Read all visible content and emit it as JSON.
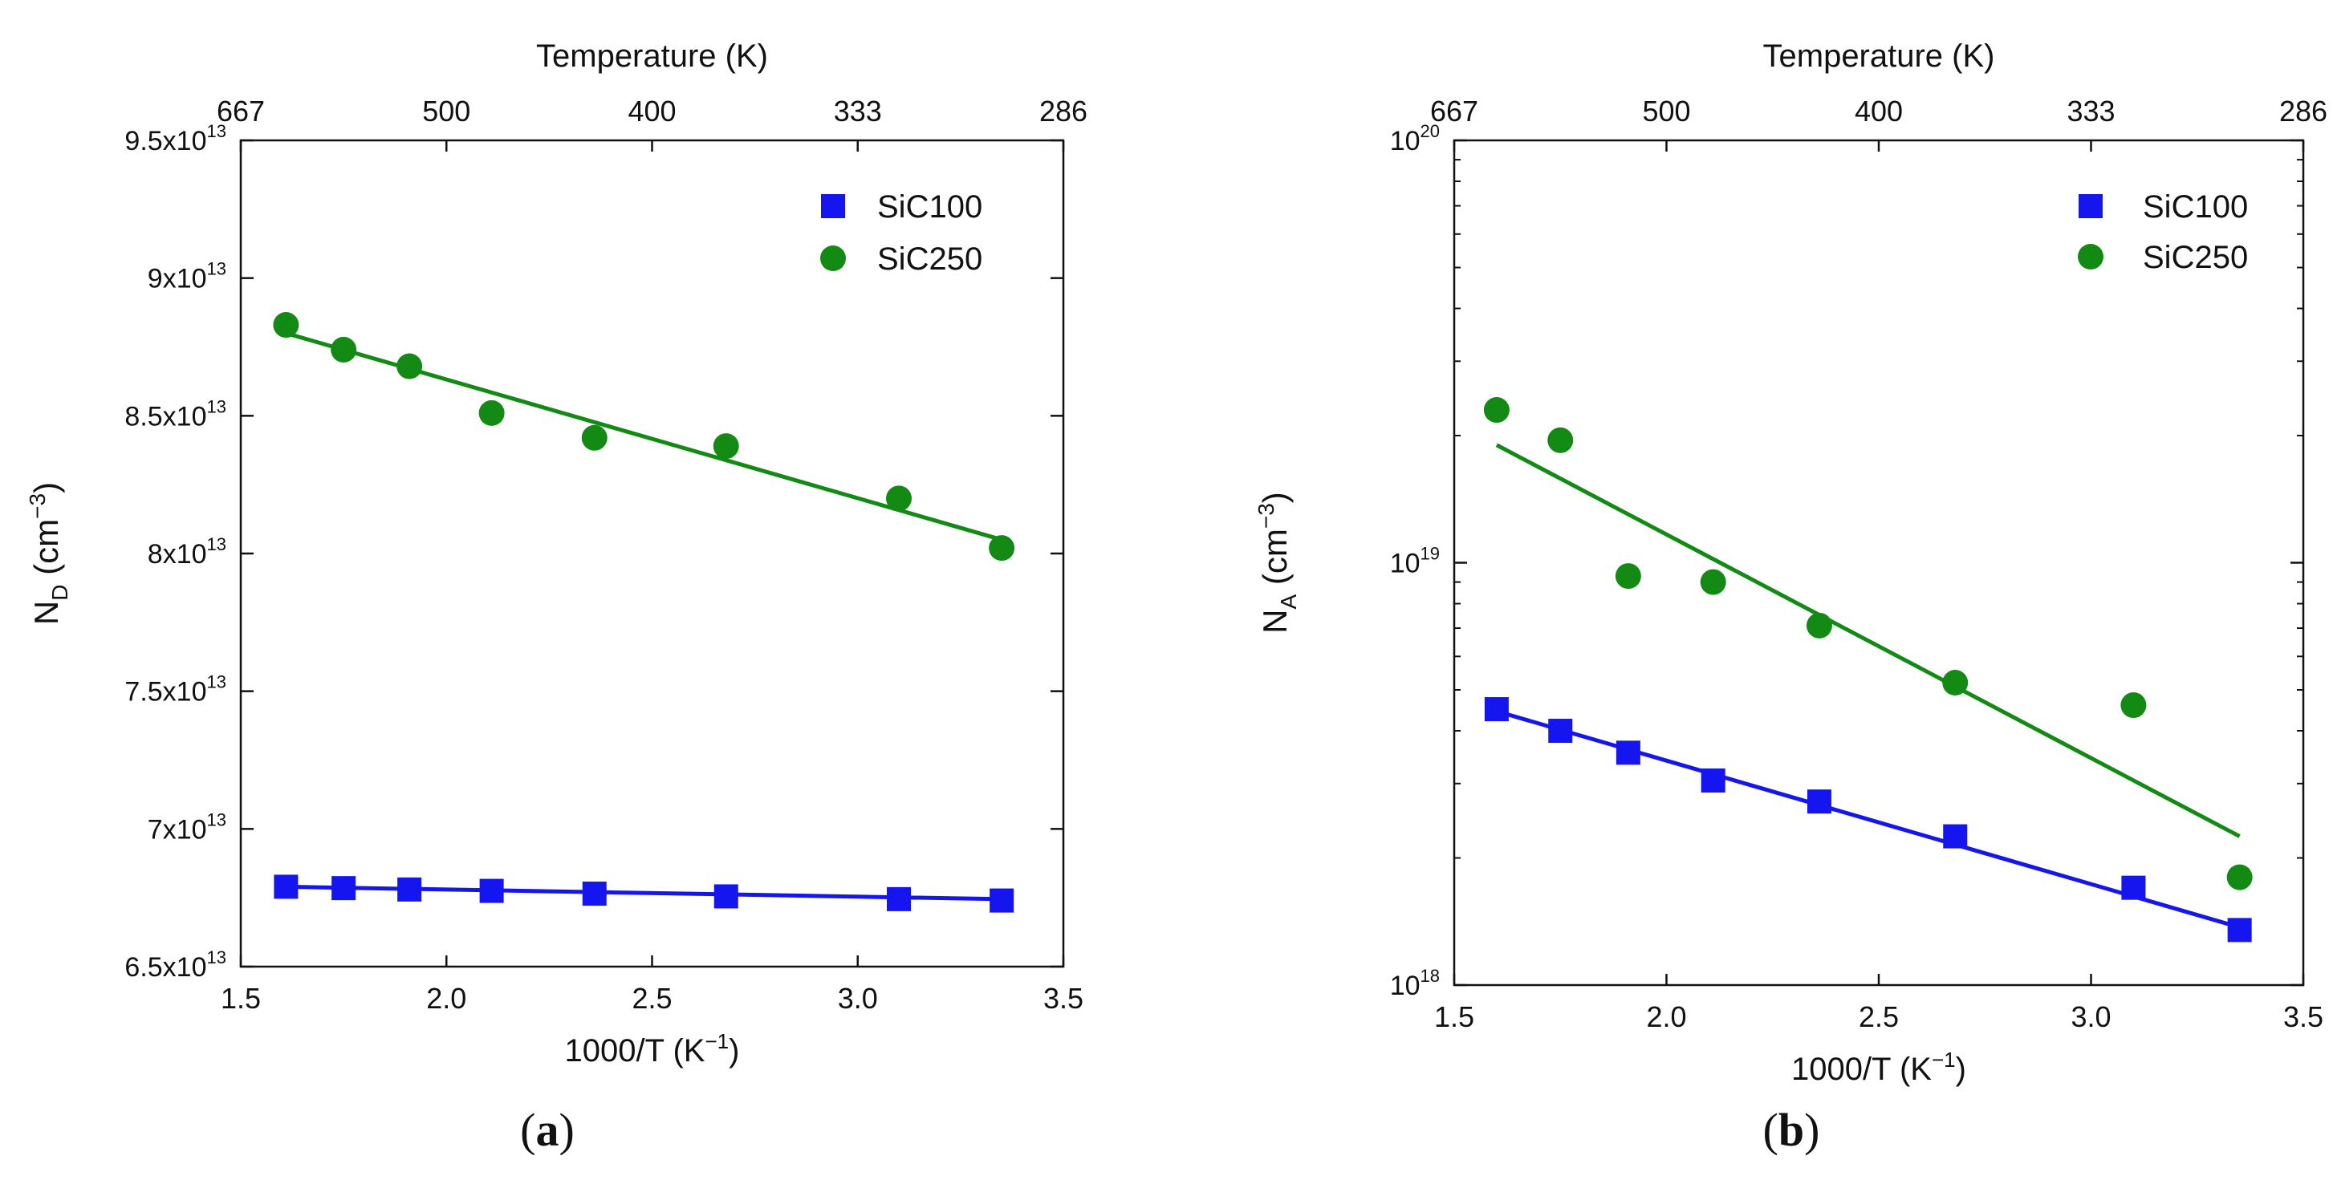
{
  "colors": {
    "SiC100": "#1515f0",
    "SiC250": "#138a13",
    "axis": "#111111"
  },
  "chart_data": [
    {
      "panel": "(a)",
      "type": "scatter",
      "caption_open": "(",
      "caption_letter": "a",
      "caption_close": ")",
      "xlabel": "1000/T (K",
      "xlabel_exp": "−1",
      "xlabel_close": ")",
      "top_axis_label": "Temperature (K)",
      "ylabel_main": "N",
      "ylabel_sub": "D",
      "ylabel_unit": " (cm",
      "ylabel_exp": "−3",
      "ylabel_close": ")",
      "yscale": "linear",
      "xlim": [
        1.5,
        3.5
      ],
      "ylim": [
        65000000000000.0,
        95000000000000.0
      ],
      "xticks": [
        {
          "value": 1.5,
          "label": "1.5"
        },
        {
          "value": 2.0,
          "label": "2.0"
        },
        {
          "value": 2.5,
          "label": "2.5"
        },
        {
          "value": 3.0,
          "label": "3.0"
        },
        {
          "value": 3.5,
          "label": "3.5"
        }
      ],
      "top_ticks": [
        {
          "value": 1.5,
          "label": "667"
        },
        {
          "value": 2.0,
          "label": "500"
        },
        {
          "value": 2.5,
          "label": "400"
        },
        {
          "value": 3.0,
          "label": "333"
        },
        {
          "value": 3.5,
          "label": "286"
        }
      ],
      "yticks": [
        {
          "value": 65000000000000.0,
          "mant": "6.5x10",
          "exp": "13"
        },
        {
          "value": 70000000000000.0,
          "mant": "7x10",
          "exp": "13"
        },
        {
          "value": 75000000000000.0,
          "mant": "7.5x10",
          "exp": "13"
        },
        {
          "value": 80000000000000.0,
          "mant": "8x10",
          "exp": "13"
        },
        {
          "value": 85000000000000.0,
          "mant": "8.5x10",
          "exp": "13"
        },
        {
          "value": 90000000000000.0,
          "mant": "9x10",
          "exp": "13"
        },
        {
          "value": 95000000000000.0,
          "mant": "9.5x10",
          "exp": "13"
        }
      ],
      "legend_position": "top-right",
      "series": [
        {
          "name": "SiC100",
          "marker": "square",
          "x": [
            1.61,
            1.75,
            1.91,
            2.11,
            2.36,
            2.68,
            3.1,
            3.35
          ],
          "y": [
            67900000000000.0,
            67850000000000.0,
            67800000000000.0,
            67750000000000.0,
            67650000000000.0,
            67550000000000.0,
            67450000000000.0,
            67400000000000.0
          ],
          "fit": {
            "x": [
              1.61,
              3.35
            ],
            "y": [
              67900000000000.0,
              67450000000000.0
            ]
          }
        },
        {
          "name": "SiC250",
          "marker": "circle",
          "x": [
            1.61,
            1.75,
            1.91,
            2.11,
            2.36,
            2.68,
            3.1,
            3.35
          ],
          "y": [
            88300000000000.0,
            87400000000000.0,
            86800000000000.0,
            85100000000000.0,
            84200000000000.0,
            83900000000000.0,
            82000000000000.0,
            80200000000000.0
          ],
          "fit": {
            "x": [
              1.61,
              3.35
            ],
            "y": [
              88000000000000.0,
              80500000000000.0
            ]
          }
        }
      ]
    },
    {
      "panel": "(b)",
      "type": "scatter",
      "caption_open": "(",
      "caption_letter": "b",
      "caption_close": ")",
      "xlabel": "1000/T (K",
      "xlabel_exp": "−1",
      "xlabel_close": ")",
      "top_axis_label": "Temperature (K)",
      "ylabel_main": "N",
      "ylabel_sub": "A",
      "ylabel_unit": " (cm",
      "ylabel_exp": "−3",
      "ylabel_close": ")",
      "yscale": "log",
      "xlim": [
        1.5,
        3.5
      ],
      "ylim": [
        1e+18,
        1e+20
      ],
      "xticks": [
        {
          "value": 1.5,
          "label": "1.5"
        },
        {
          "value": 2.0,
          "label": "2.0"
        },
        {
          "value": 2.5,
          "label": "2.5"
        },
        {
          "value": 3.0,
          "label": "3.0"
        },
        {
          "value": 3.5,
          "label": "3.5"
        }
      ],
      "top_ticks": [
        {
          "value": 1.5,
          "label": "667"
        },
        {
          "value": 2.0,
          "label": "500"
        },
        {
          "value": 2.5,
          "label": "400"
        },
        {
          "value": 3.0,
          "label": "333"
        },
        {
          "value": 3.5,
          "label": "286"
        }
      ],
      "yticks": [
        {
          "value": 1e+18,
          "mant": "10",
          "exp": "18"
        },
        {
          "value": 1e+19,
          "mant": "10",
          "exp": "19"
        },
        {
          "value": 1e+20,
          "mant": "10",
          "exp": "20"
        }
      ],
      "legend_position": "top-right",
      "series": [
        {
          "name": "SiC100",
          "marker": "square",
          "x": [
            1.6,
            1.75,
            1.91,
            2.11,
            2.36,
            2.68,
            3.1,
            3.35
          ],
          "y": [
            4.5e+18,
            4e+18,
            3.55e+18,
            3.05e+18,
            2.72e+18,
            2.25e+18,
            1.7e+18,
            1.35e+18
          ],
          "fit": {
            "x": [
              1.6,
              3.35
            ],
            "y": [
              4.45e+18,
              1.37e+18
            ]
          }
        },
        {
          "name": "SiC250",
          "marker": "circle",
          "x": [
            1.6,
            1.75,
            1.91,
            2.11,
            2.36,
            2.68,
            3.1,
            3.35
          ],
          "y": [
            2.3e+19,
            1.95e+19,
            9.3e+18,
            9e+18,
            7.1e+18,
            5.2e+18,
            4.6e+18,
            1.8e+18
          ],
          "fit": {
            "x": [
              1.6,
              3.35
            ],
            "y": [
              1.9e+19,
              2.25e+18
            ]
          }
        }
      ]
    }
  ]
}
